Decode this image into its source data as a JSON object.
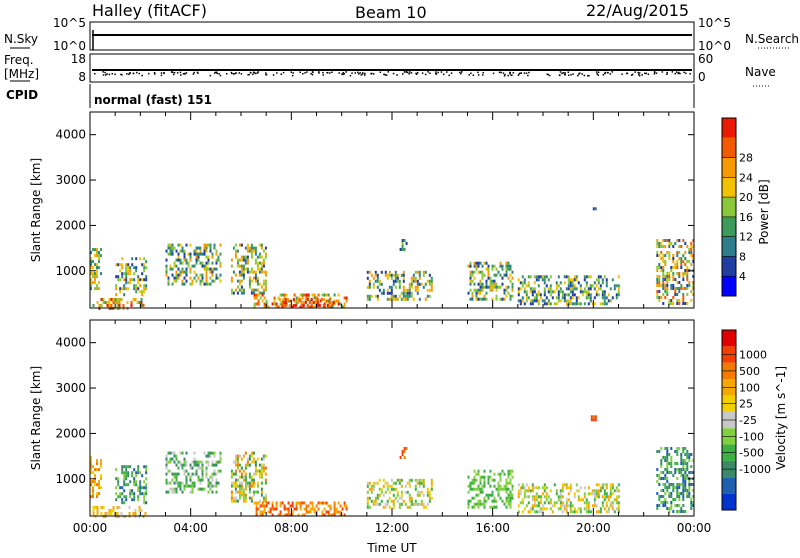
{
  "header": {
    "station": "Halley (fitACF)",
    "beam": "Beam 10",
    "date": "22/Aug/2015"
  },
  "top_panels": {
    "nsky_label": "N.Sky",
    "nsky_ticks": [
      "10^5",
      "10^0"
    ],
    "nsearch_label": "N.Search",
    "nsearch_ticks": [
      "10^5",
      "10^0"
    ],
    "freq_label": "Freq.",
    "freq_unit": "[MHz]",
    "freq_ticks": [
      "18",
      "8"
    ],
    "nave_label": "Nave",
    "nave_ticks": [
      "60",
      "0"
    ],
    "cpid_label": "CPID",
    "cpid_text": "normal (fast) 151"
  },
  "chart_data": [
    {
      "type": "heatmap",
      "variable": "power",
      "ylabel": "Slant Range [km]",
      "ylim": [
        180,
        4500
      ],
      "yticks": [
        1000,
        2000,
        3000,
        4000
      ],
      "xlim": [
        0,
        24
      ],
      "colorbar": {
        "label": "Power [dB]",
        "ticks": [
          "4",
          "8",
          "12",
          "16",
          "20",
          "24",
          "28"
        ],
        "colors": [
          "#0000ff",
          "#1f3fa0",
          "#2e7d8c",
          "#3c9a5a",
          "#88c83a",
          "#f2c200",
          "#f79a00",
          "#f25a00",
          "#e81a00"
        ]
      },
      "echo_regions": [
        {
          "t0": 0.0,
          "t1": 0.4,
          "r0": 600,
          "r1": 1500,
          "level": [
            2,
            6
          ]
        },
        {
          "t0": 0.1,
          "t1": 2.2,
          "r0": 200,
          "r1": 400,
          "level": [
            3,
            8
          ]
        },
        {
          "t0": 1.0,
          "t1": 2.2,
          "r0": 500,
          "r1": 1300,
          "level": [
            1,
            6
          ]
        },
        {
          "t0": 3.0,
          "t1": 5.2,
          "r0": 700,
          "r1": 1600,
          "level": [
            1,
            6
          ]
        },
        {
          "t0": 5.6,
          "t1": 7.0,
          "r0": 500,
          "r1": 1600,
          "level": [
            1,
            6
          ]
        },
        {
          "t0": 6.5,
          "t1": 10.2,
          "r0": 180,
          "r1": 500,
          "level": [
            3,
            8
          ]
        },
        {
          "t0": 7.5,
          "t1": 9.8,
          "r0": 220,
          "r1": 400,
          "level": [
            6,
            8
          ]
        },
        {
          "t0": 11.0,
          "t1": 13.6,
          "r0": 400,
          "r1": 1000,
          "level": [
            1,
            6
          ]
        },
        {
          "t0": 12.3,
          "t1": 12.6,
          "r0": 1450,
          "r1": 1700,
          "level": [
            1,
            4
          ]
        },
        {
          "t0": 15.0,
          "t1": 16.8,
          "r0": 400,
          "r1": 1200,
          "level": [
            1,
            6
          ]
        },
        {
          "t0": 17.0,
          "t1": 21.0,
          "r0": 250,
          "r1": 900,
          "level": [
            1,
            5
          ]
        },
        {
          "t0": 19.9,
          "t1": 20.1,
          "r0": 2300,
          "r1": 2400,
          "level": [
            1,
            3
          ]
        },
        {
          "t0": 22.5,
          "t1": 24.0,
          "r0": 300,
          "r1": 1700,
          "level": [
            1,
            7
          ]
        }
      ]
    },
    {
      "type": "heatmap",
      "variable": "velocity",
      "ylabel": "Slant Range [km]",
      "ylim": [
        180,
        4500
      ],
      "yticks": [
        1000,
        2000,
        3000,
        4000
      ],
      "xlim": [
        0,
        24
      ],
      "xlabel": "Time UT",
      "xticks": [
        "00:00",
        "04:00",
        "08:00",
        "12:00",
        "16:00",
        "20:00",
        "00:00"
      ],
      "colorbar": {
        "label": "Velocity [m s^-1]",
        "ticks": [
          "1000",
          "500",
          "100",
          "25",
          "-25",
          "-100",
          "-500",
          "-1000"
        ],
        "colors": [
          "#0033cc",
          "#1f5fb0",
          "#3a8a6a",
          "#3cb043",
          "#80d040",
          "#c8c8c8",
          "#f2d000",
          "#f5a800",
          "#f57a00",
          "#f24000",
          "#e00000"
        ]
      },
      "echo_regions": [
        {
          "t0": 0.0,
          "t1": 0.4,
          "r0": 600,
          "r1": 1500,
          "level": [
            6,
            8
          ]
        },
        {
          "t0": 0.1,
          "t1": 2.2,
          "r0": 200,
          "r1": 400,
          "level": [
            5,
            7
          ]
        },
        {
          "t0": 1.0,
          "t1": 2.2,
          "r0": 500,
          "r1": 1300,
          "level": [
            1,
            4
          ]
        },
        {
          "t0": 3.0,
          "t1": 5.2,
          "r0": 700,
          "r1": 1600,
          "level": [
            2,
            5
          ]
        },
        {
          "t0": 5.6,
          "t1": 7.0,
          "r0": 500,
          "r1": 1600,
          "level": [
            2,
            8
          ]
        },
        {
          "t0": 6.5,
          "t1": 10.2,
          "r0": 180,
          "r1": 500,
          "level": [
            7,
            9
          ]
        },
        {
          "t0": 11.0,
          "t1": 13.6,
          "r0": 400,
          "r1": 1000,
          "level": [
            3,
            7
          ]
        },
        {
          "t0": 12.3,
          "t1": 12.6,
          "r0": 1450,
          "r1": 1700,
          "level": [
            8,
            9
          ]
        },
        {
          "t0": 15.0,
          "t1": 16.8,
          "r0": 400,
          "r1": 1200,
          "level": [
            3,
            4
          ]
        },
        {
          "t0": 17.0,
          "t1": 21.0,
          "r0": 250,
          "r1": 900,
          "level": [
            3,
            7
          ]
        },
        {
          "t0": 19.9,
          "t1": 20.1,
          "r0": 2300,
          "r1": 2400,
          "level": [
            8,
            9
          ]
        },
        {
          "t0": 22.5,
          "t1": 24.0,
          "r0": 300,
          "r1": 1700,
          "level": [
            1,
            4
          ]
        }
      ]
    }
  ]
}
